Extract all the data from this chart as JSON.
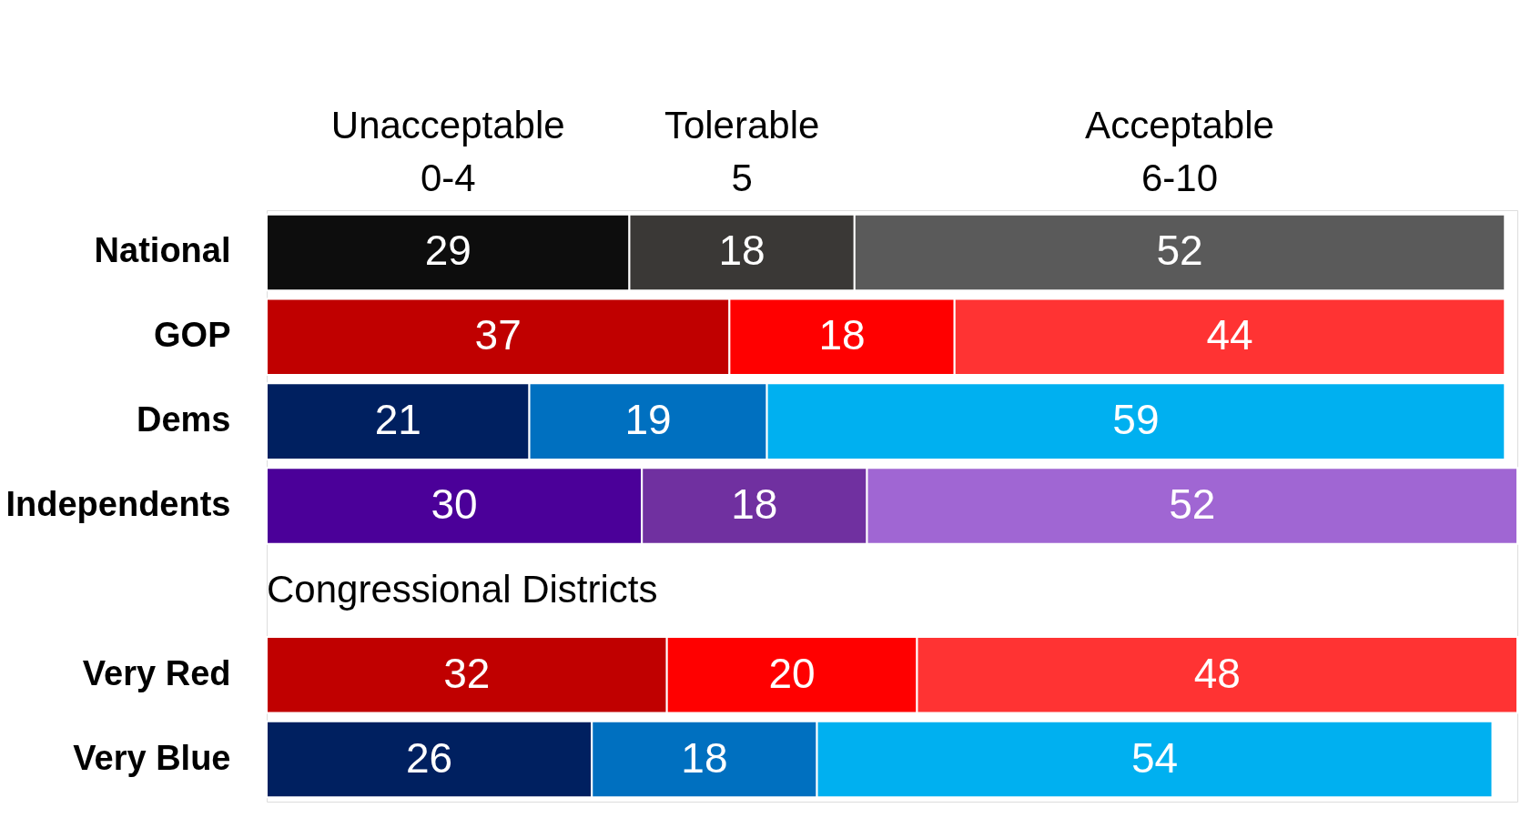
{
  "chart_data": {
    "type": "bar",
    "orientation": "horizontal",
    "stacked": true,
    "data_labels": true,
    "legend": "top",
    "tick_labels": "y",
    "grid": false,
    "categories": [
      "National",
      "GOP",
      "Dems",
      "Independents",
      null,
      "Very Red",
      "Very Blue"
    ],
    "xlim": [
      0,
      100
    ],
    "series": [
      {
        "name": "Unacceptable\n0-4",
        "colors": [
          "#0d0d0d",
          "#c00000",
          "#002060",
          "#4b0099",
          null,
          "#c00000",
          "#002060"
        ],
        "values": [
          29,
          37,
          21,
          30,
          null,
          32,
          26
        ]
      },
      {
        "name": "Tolerable\n5",
        "colors": [
          "#3a3836",
          "#ff0000",
          "#0070c0",
          "#7030a0",
          null,
          "#ff0000",
          "#0070c0"
        ],
        "values": [
          18,
          18,
          19,
          18,
          null,
          20,
          18
        ]
      },
      {
        "name": "Acceptable\n6-10",
        "colors": [
          "#5a5a5a",
          "#ff3333",
          "#00b0f0",
          "#a066d3",
          null,
          "#ff3333",
          "#00b0f0"
        ],
        "values": [
          52,
          44,
          59,
          52,
          null,
          48,
          54
        ]
      }
    ],
    "annotations": [
      "Congressional Districts"
    ]
  }
}
